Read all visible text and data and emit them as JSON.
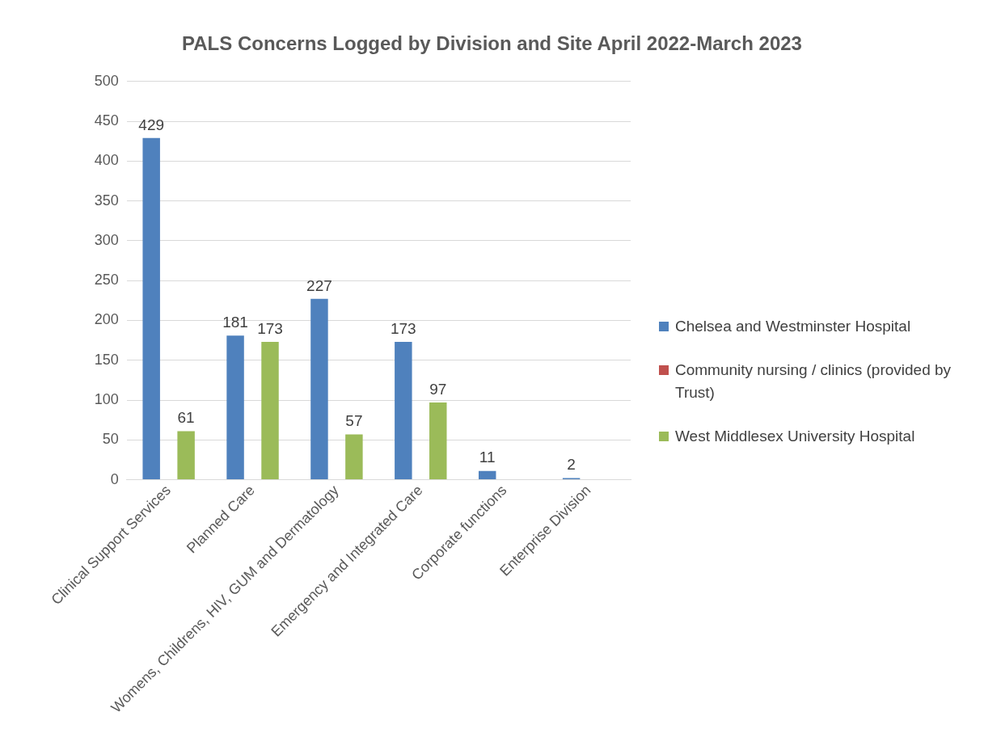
{
  "chart_data": {
    "type": "bar",
    "title": "PALS Concerns Logged by Division and Site April 2022-March 2023",
    "categories": [
      "Clinical Support Services",
      "Planned Care",
      "Womens, Childrens, HIV, GUM and Dermatology",
      "Emergency and Integrated Care",
      "Corporate functions",
      "Enterprise Division"
    ],
    "series": [
      {
        "name": "Chelsea and Westminster Hospital",
        "color": "#4f81bd",
        "values": [
          429,
          181,
          227,
          173,
          11,
          2
        ]
      },
      {
        "name": "Community nursing / clinics (provided by Trust)",
        "color": "#c0504d",
        "values": [
          null,
          null,
          null,
          null,
          null,
          null
        ]
      },
      {
        "name": "West Middlesex University Hospital",
        "color": "#9bbb59",
        "values": [
          61,
          173,
          57,
          97,
          null,
          null
        ]
      }
    ],
    "ylim": [
      0,
      500
    ],
    "yticks": [
      0,
      50,
      100,
      150,
      200,
      250,
      300,
      350,
      400,
      450,
      500
    ],
    "grid": "y",
    "legend": "right",
    "data_labels": true
  }
}
